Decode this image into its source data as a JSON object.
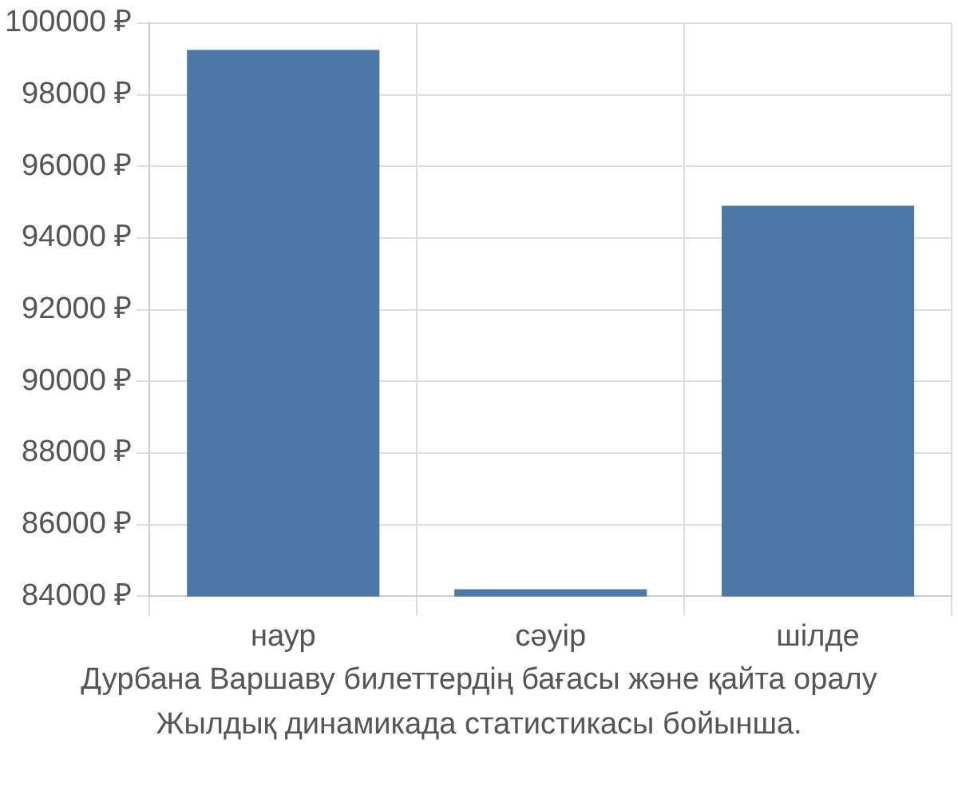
{
  "chart_data": {
    "type": "bar",
    "title": "Дурбана Варшаву билеттердің бағасы және қайта оралу",
    "annotations": [
      "Жылдық динамикада статистикасы бойынша."
    ],
    "categories": [
      "наур",
      "сәуір",
      "шілде"
    ],
    "values": [
      99250,
      84200,
      94900
    ],
    "color": "#4c78a8",
    "ylim": [
      84000,
      100000
    ],
    "yticks": [
      {
        "value": 84000,
        "label": "84000 ₽"
      },
      {
        "value": 86000,
        "label": "86000 ₽"
      },
      {
        "value": 88000,
        "label": "88000 ₽"
      },
      {
        "value": 90000,
        "label": "90000 ₽"
      },
      {
        "value": 92000,
        "label": "92000 ₽"
      },
      {
        "value": 94000,
        "label": "94000 ₽"
      },
      {
        "value": 96000,
        "label": "96000 ₽"
      },
      {
        "value": 98000,
        "label": "98000 ₽"
      },
      {
        "value": 100000,
        "label": "100000 ₽"
      }
    ],
    "grid": true
  }
}
